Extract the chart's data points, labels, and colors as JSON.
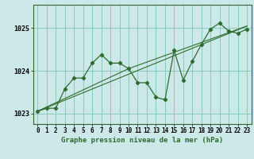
{
  "title": "Graphe pression niveau de la mer (hPa)",
  "bg_color": "#cce8e8",
  "grid_color": "#88ccbb",
  "line_color": "#2d6e2d",
  "hours": [
    0,
    1,
    2,
    3,
    4,
    5,
    6,
    7,
    8,
    9,
    10,
    11,
    12,
    13,
    14,
    15,
    16,
    17,
    18,
    19,
    20,
    21,
    22,
    23
  ],
  "pressure": [
    1023.05,
    1023.12,
    1023.12,
    1023.58,
    1023.83,
    1023.83,
    1024.18,
    1024.38,
    1024.18,
    1024.18,
    1024.05,
    1023.72,
    1023.72,
    1023.38,
    1023.32,
    1024.48,
    1023.78,
    1024.22,
    1024.62,
    1024.98,
    1025.12,
    1024.93,
    1024.88,
    1024.98
  ],
  "ylim": [
    1022.75,
    1025.55
  ],
  "yticks": [
    1023,
    1024,
    1025
  ],
  "xlim": [
    -0.5,
    23.5
  ],
  "regression_lines": [
    {
      "x": [
        0,
        23
      ],
      "y": [
        1023.05,
        1025.05
      ]
    },
    {
      "x": [
        0,
        10
      ],
      "y": [
        1023.05,
        1024.05
      ]
    },
    {
      "x": [
        10,
        23
      ],
      "y": [
        1024.05,
        1025.05
      ]
    }
  ],
  "tick_fontsize": 5.5,
  "label_fontsize": 6.5
}
